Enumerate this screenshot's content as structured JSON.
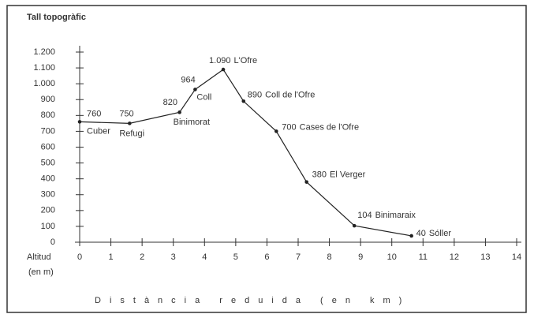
{
  "chart_data": {
    "type": "line",
    "title": "Tall topogràfic",
    "y_label": [
      "Altitud",
      "(en m)"
    ],
    "x_label": "Distància reduida (en km)",
    "x": [
      0,
      1.6,
      3.2,
      3.7,
      4.6,
      5.25,
      6.3,
      7.27,
      8.8,
      10.63
    ],
    "values": [
      760,
      750,
      820,
      964,
      1090,
      890,
      700,
      380,
      104,
      40
    ],
    "value_labels": [
      "760",
      "750",
      "820",
      "964",
      "1.090",
      "890",
      "700",
      "380",
      "104",
      "40"
    ],
    "point_labels": [
      "Cuber",
      "Refugi",
      "Binimorat",
      "Coll",
      "L'Ofre",
      "Coll de l'Ofre",
      "Cases de l'Ofre",
      "El Verger",
      "Binimaraix",
      "Sóller"
    ],
    "color": "#222222",
    "xlim": [
      0,
      14
    ],
    "xticks": [
      0,
      1,
      2,
      3,
      4,
      5,
      6,
      7,
      8,
      9,
      10,
      11,
      12,
      13,
      14
    ],
    "ylim": [
      0,
      1200
    ],
    "yticks": [
      0,
      100,
      200,
      300,
      400,
      500,
      600,
      700,
      800,
      900,
      {
        "value": 1000,
        "label": "1.000"
      },
      {
        "value": 1100,
        "label": "1.100"
      },
      {
        "value": 1200,
        "label": "1.200"
      }
    ]
  }
}
